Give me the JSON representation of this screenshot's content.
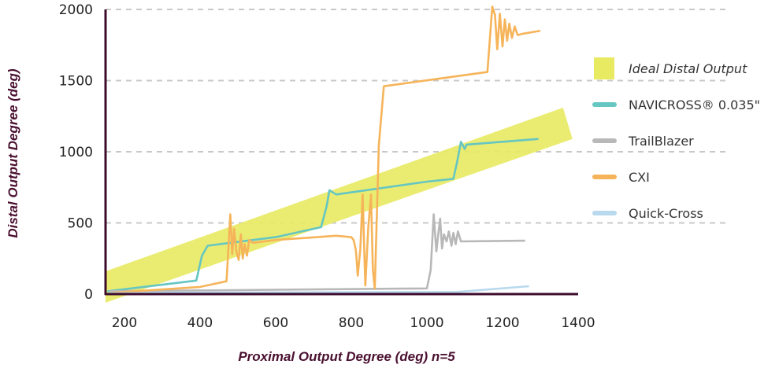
{
  "chart_data": {
    "type": "line",
    "xlabel": "Proximal Output Degree (deg) n=5",
    "ylabel": "Distal Output Degree (deg)",
    "xlim": [
      150,
      1400
    ],
    "ylim": [
      0,
      2000
    ],
    "x_ticks": [
      "200",
      "400",
      "600",
      "800",
      "1000",
      "1200",
      "1400"
    ],
    "y_ticks": [
      "0",
      "500",
      "1000",
      "1500",
      "2000"
    ],
    "grid": "horizontal dashed",
    "legend_position": "right",
    "colors": {
      "ideal": "#e8ea62",
      "navicross": "#66c6c2",
      "trailblazer": "#b8b8b8",
      "cxi": "#f6b45a",
      "quickcross": "#b9d9ee",
      "axis": "#3d0c2c",
      "grid": "#c8c8c8"
    },
    "band": {
      "name": "Ideal Distal Output",
      "center": [
        [
          150,
          50
        ],
        [
          1360,
          1200
        ]
      ],
      "half_width": 110
    },
    "series": [
      {
        "name": "NAVICROSS® 0.035\"",
        "color_key": "navicross",
        "points": [
          [
            155,
            20
          ],
          [
            390,
            95
          ],
          [
            405,
            270
          ],
          [
            420,
            340
          ],
          [
            480,
            360
          ],
          [
            600,
            400
          ],
          [
            720,
            470
          ],
          [
            735,
            620
          ],
          [
            742,
            730
          ],
          [
            760,
            700
          ],
          [
            1000,
            790
          ],
          [
            1070,
            810
          ],
          [
            1080,
            930
          ],
          [
            1090,
            1070
          ],
          [
            1100,
            1020
          ],
          [
            1105,
            1050
          ],
          [
            1295,
            1090
          ]
        ]
      },
      {
        "name": "TrailBlazer",
        "color_key": "trailblazer",
        "points": [
          [
            160,
            20
          ],
          [
            1000,
            40
          ],
          [
            1010,
            170
          ],
          [
            1018,
            560
          ],
          [
            1025,
            300
          ],
          [
            1030,
            420
          ],
          [
            1035,
            530
          ],
          [
            1040,
            320
          ],
          [
            1045,
            420
          ],
          [
            1052,
            370
          ],
          [
            1058,
            440
          ],
          [
            1065,
            340
          ],
          [
            1070,
            430
          ],
          [
            1076,
            350
          ],
          [
            1082,
            440
          ],
          [
            1090,
            370
          ],
          [
            1260,
            375
          ]
        ]
      },
      {
        "name": "CXI",
        "color_key": "cxi",
        "points": [
          [
            170,
            10
          ],
          [
            400,
            50
          ],
          [
            470,
            90
          ],
          [
            480,
            560
          ],
          [
            485,
            280
          ],
          [
            490,
            460
          ],
          [
            496,
            300
          ],
          [
            502,
            240
          ],
          [
            508,
            420
          ],
          [
            513,
            250
          ],
          [
            518,
            350
          ],
          [
            524,
            270
          ],
          [
            530,
            380
          ],
          [
            540,
            360
          ],
          [
            600,
            380
          ],
          [
            760,
            410
          ],
          [
            800,
            400
          ],
          [
            806,
            380
          ],
          [
            812,
            310
          ],
          [
            817,
            130
          ],
          [
            824,
            320
          ],
          [
            830,
            700
          ],
          [
            837,
            60
          ],
          [
            845,
            470
          ],
          [
            852,
            700
          ],
          [
            857,
            170
          ],
          [
            862,
            40
          ],
          [
            873,
            1050
          ],
          [
            886,
            1460
          ],
          [
            1160,
            1560
          ],
          [
            1173,
            2020
          ],
          [
            1180,
            1960
          ],
          [
            1186,
            1720
          ],
          [
            1193,
            1970
          ],
          [
            1200,
            1740
          ],
          [
            1206,
            1930
          ],
          [
            1212,
            1780
          ],
          [
            1218,
            1900
          ],
          [
            1225,
            1800
          ],
          [
            1232,
            1880
          ],
          [
            1240,
            1820
          ],
          [
            1255,
            1830
          ],
          [
            1300,
            1850
          ]
        ]
      },
      {
        "name": "Quick-Cross",
        "color_key": "quickcross",
        "points": [
          [
            160,
            5
          ],
          [
            300,
            10
          ],
          [
            1080,
            15
          ],
          [
            1270,
            55
          ]
        ]
      }
    ]
  },
  "legend": [
    {
      "label": "Ideal Distal Output",
      "color_key": "ideal",
      "shape": "square",
      "italic": true
    },
    {
      "label": "NAVICROSS® 0.035\"",
      "color_key": "navicross",
      "shape": "line",
      "italic": false
    },
    {
      "label": "TrailBlazer",
      "color_key": "trailblazer",
      "shape": "line",
      "italic": false
    },
    {
      "label": "CXI",
      "color_key": "cxi",
      "shape": "line",
      "italic": false
    },
    {
      "label": "Quick-Cross",
      "color_key": "quickcross",
      "shape": "line",
      "italic": false
    }
  ]
}
